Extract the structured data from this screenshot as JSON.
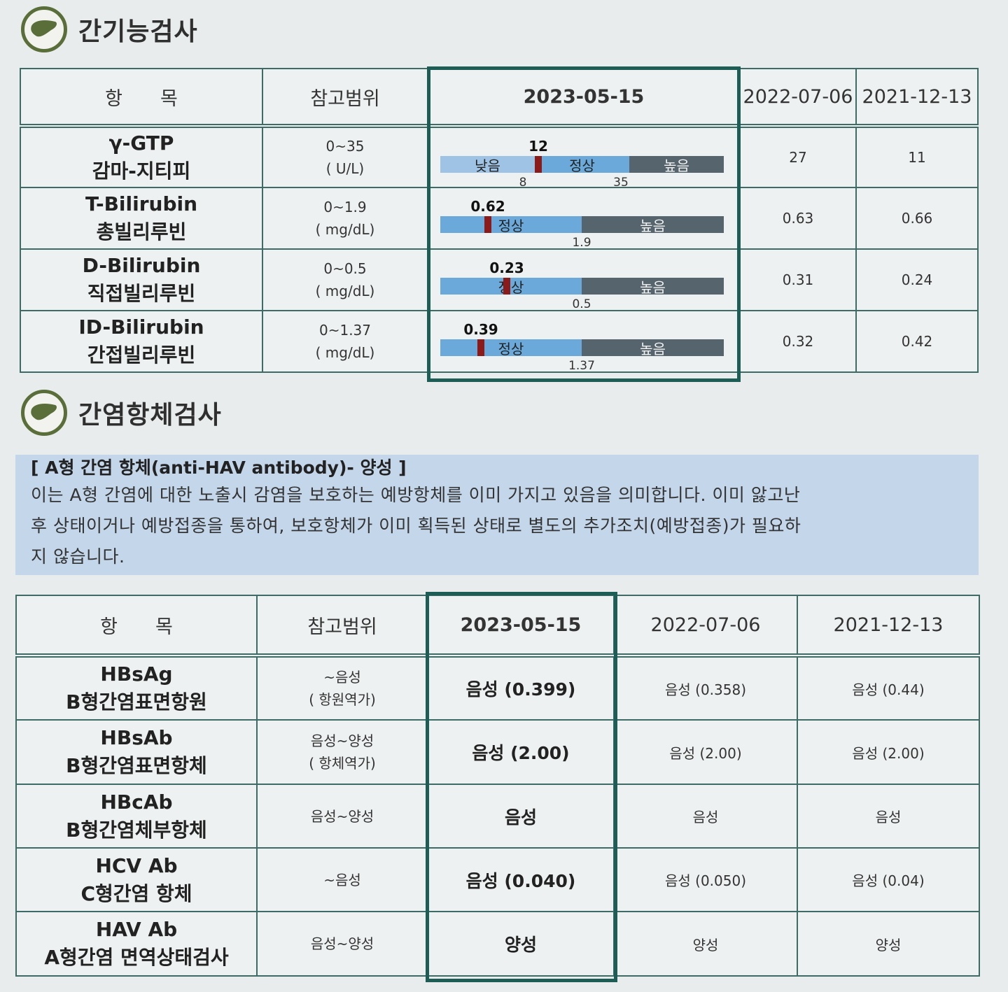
{
  "liver_function": {
    "title": "간기능검사",
    "headers": [
      "항　　목",
      "참고범위",
      "2023-05-15",
      "2022-07-06",
      "2021-12-13"
    ],
    "rows": [
      {
        "name": "γ-GTP",
        "korean": "감마-지티피",
        "range": "0~35",
        "unit": "( U/L)",
        "current": {
          "value": "12",
          "segments": [
            "낮음",
            "정상",
            "높음"
          ],
          "ticks": [
            "8",
            "35"
          ]
        },
        "prev1": "27",
        "prev2": "11"
      },
      {
        "name": "T-Bilirubin",
        "korean": "총빌리루빈",
        "range": "0~1.9",
        "unit": "( mg/dL)",
        "current": {
          "value": "0.62",
          "segments": [
            "정상",
            "높음"
          ],
          "ticks": [
            "1.9"
          ]
        },
        "prev1": "0.63",
        "prev2": "0.66"
      },
      {
        "name": "D-Bilirubin",
        "korean": "직접빌리루빈",
        "range": "0~0.5",
        "unit": "( mg/dL)",
        "current": {
          "value": "0.23",
          "segments": [
            "정상",
            "높음"
          ],
          "ticks": [
            "0.5"
          ]
        },
        "prev1": "0.31",
        "prev2": "0.24"
      },
      {
        "name": "ID-Bilirubin",
        "korean": "간접빌리루빈",
        "range": "0~1.37",
        "unit": "( mg/dL)",
        "current": {
          "value": "0.39",
          "segments": [
            "정상",
            "높음"
          ],
          "ticks": [
            "1.37"
          ]
        },
        "prev1": "0.32",
        "prev2": "0.42"
      }
    ]
  },
  "hepatitis_antibody": {
    "title": "간염항체검사",
    "note": {
      "title": "[ A형 간염 항체(anti-HAV antibody)- 양성 ]",
      "lines": [
        "이는 A형 간염에 대한 노출시 감염을 보호하는 예방항체를 이미 가지고 있음을 의미합니다. 이미 앓고난",
        "후 상태이거나 예방접종을 통하여, 보호항체가 이미 획득된 상태로 별도의 추가조치(예방접종)가 필요하",
        "지 않습니다."
      ]
    },
    "headers": [
      "항　　목",
      "참고범위",
      "2023-05-15",
      "2022-07-06",
      "2021-12-13"
    ],
    "rows": [
      {
        "name": "HBsAg",
        "korean": "B형간염표면항원",
        "range_lines": [
          "~음성",
          "( 항원역가)"
        ],
        "current": "음성 (0.399)",
        "prev1": "음성 (0.358)",
        "prev2": "음성 (0.44)"
      },
      {
        "name": "HBsAb",
        "korean": "B형간염표면항체",
        "range_lines": [
          "음성~양성",
          "( 항체역가)"
        ],
        "current": "음성 (2.00)",
        "prev1": "음성 (2.00)",
        "prev2": "음성 (2.00)"
      },
      {
        "name": "HBcAb",
        "korean": "B형간염체부항체",
        "range_lines": [
          "음성~양성"
        ],
        "current": "음성",
        "prev1": "음성",
        "prev2": "음성"
      },
      {
        "name": "HCV Ab",
        "korean": "C형간염 항체",
        "range_lines": [
          "~음성"
        ],
        "current": "음성 (0.040)",
        "prev1": "음성 (0.050)",
        "prev2": "음성 (0.04)"
      },
      {
        "name": "HAV Ab",
        "korean": "A형간염 면역상태검사",
        "range_lines": [
          "음성~양성"
        ],
        "current": "양성",
        "prev1": "양성",
        "prev2": "양성"
      }
    ]
  },
  "colors": {
    "border": "#3e6b66",
    "highlight_frame": "#1d5d56",
    "bar_low": "#9fc3e4",
    "bar_normal": "#6aa9d9",
    "bar_high": "#56646d",
    "marker": "#8b1a1a",
    "note_bg": "#c3d6ea",
    "icon": "#5a6e3a"
  }
}
